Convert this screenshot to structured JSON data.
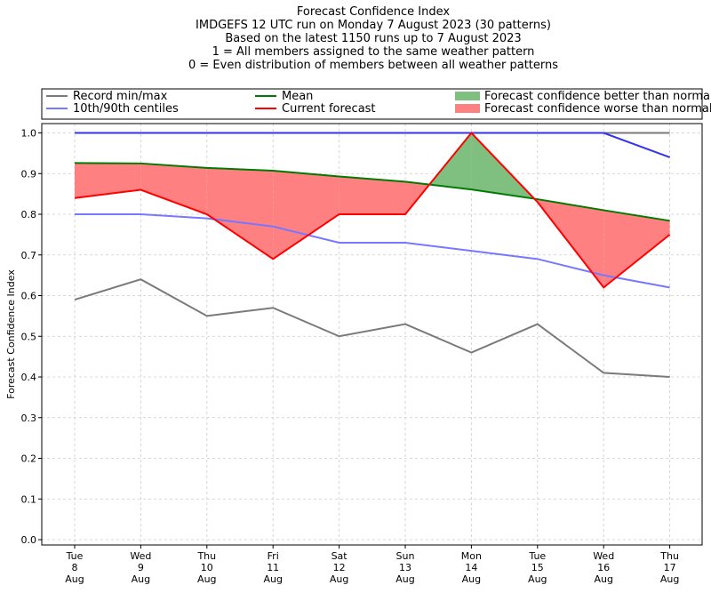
{
  "title_lines": [
    "Forecast Confidence Index",
    "IMDGEFS 12 UTC run on Monday 7 August 2023 (30 patterns)",
    "Based on the latest 1150 runs up to 7 August 2023",
    "1 = All members assigned to the same weather pattern",
    "0 = Even distribution of members between all weather patterns"
  ],
  "chart_data": {
    "type": "line",
    "ylabel": "Forecast Confidence Index",
    "ylim": [
      0,
      1
    ],
    "yticks": [
      "0.0",
      "0.1",
      "0.2",
      "0.3",
      "0.4",
      "0.5",
      "0.6",
      "0.7",
      "0.8",
      "0.9",
      "1.0"
    ],
    "grid": true,
    "legend_position": "top",
    "categories": [
      [
        "Tue",
        "8",
        "Aug"
      ],
      [
        "Wed",
        "9",
        "Aug"
      ],
      [
        "Thu",
        "10",
        "Aug"
      ],
      [
        "Fri",
        "11",
        "Aug"
      ],
      [
        "Sat",
        "12",
        "Aug"
      ],
      [
        "Sun",
        "13",
        "Aug"
      ],
      [
        "Mon",
        "14",
        "Aug"
      ],
      [
        "Tue",
        "15",
        "Aug"
      ],
      [
        "Wed",
        "16",
        "Aug"
      ],
      [
        "Thu",
        "17",
        "Aug"
      ]
    ],
    "series": [
      {
        "name": "Record min/max",
        "role": "record_min",
        "color": "#7a7a7a",
        "values": [
          0.59,
          0.64,
          0.55,
          0.57,
          0.5,
          0.53,
          0.46,
          0.53,
          0.41,
          0.4
        ]
      },
      {
        "name": "Record min/max",
        "role": "record_max",
        "color": "#7a7a7a",
        "values": [
          1.0,
          1.0,
          1.0,
          1.0,
          1.0,
          1.0,
          1.0,
          1.0,
          1.0,
          1.0
        ]
      },
      {
        "name": "10th/90th centiles",
        "role": "p10",
        "color": "#7777ff",
        "values": [
          0.8,
          0.8,
          0.79,
          0.77,
          0.73,
          0.73,
          0.71,
          0.69,
          0.65,
          0.62
        ]
      },
      {
        "name": "10th/90th centiles",
        "role": "p90",
        "color": "#3333ee",
        "values": [
          1.0,
          1.0,
          1.0,
          1.0,
          1.0,
          1.0,
          1.0,
          1.0,
          1.0,
          0.94
        ]
      },
      {
        "name": "Mean",
        "role": "mean",
        "color": "#007a00",
        "values": [
          0.926,
          0.925,
          0.914,
          0.907,
          0.893,
          0.88,
          0.861,
          0.837,
          0.81,
          0.784
        ]
      },
      {
        "name": "Current forecast",
        "role": "current",
        "color": "#ff0000",
        "values": [
          0.84,
          0.86,
          0.8,
          0.69,
          0.8,
          0.8,
          1.0,
          0.83,
          0.62,
          0.75
        ]
      }
    ],
    "legend": [
      {
        "label": "Record min/max",
        "kind": "line",
        "color": "#7a7a7a"
      },
      {
        "label": "10th/90th centiles",
        "kind": "line",
        "color": "#7777ff"
      },
      {
        "label": "Mean",
        "kind": "line",
        "color": "#007a00"
      },
      {
        "label": "Current forecast",
        "kind": "line",
        "color": "#ff0000"
      },
      {
        "label": "Forecast confidence better than normal",
        "kind": "patch",
        "color": "#7fbf7f"
      },
      {
        "label": "Forecast confidence worse than normal",
        "kind": "patch",
        "color": "#ff8080"
      }
    ]
  }
}
